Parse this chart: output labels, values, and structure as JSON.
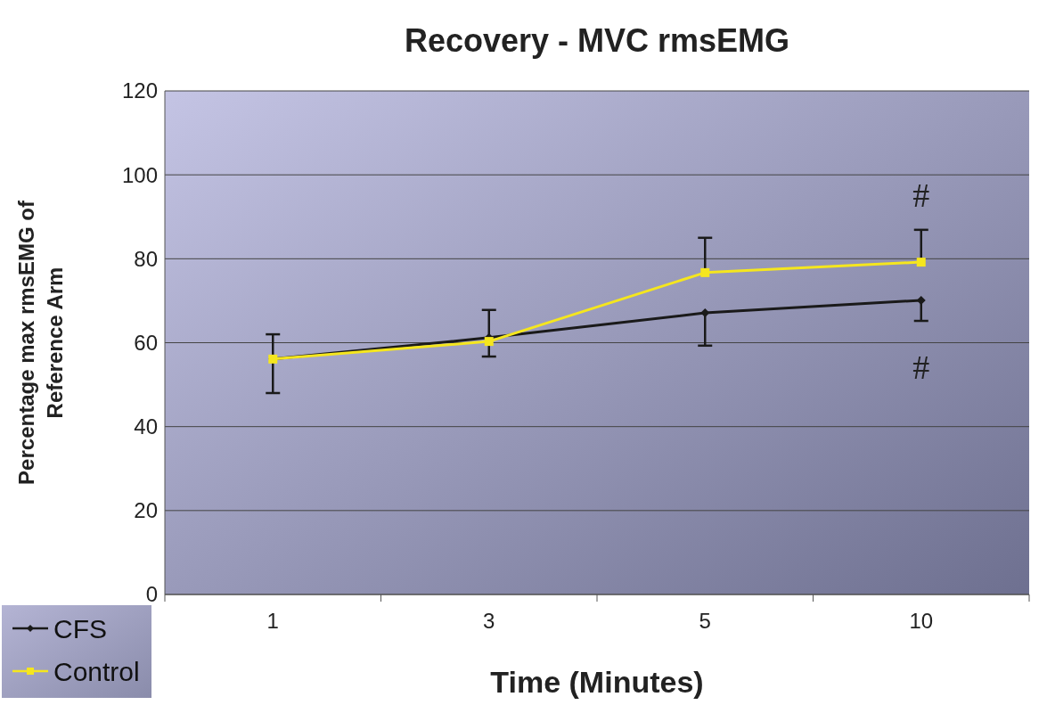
{
  "chart_data": {
    "type": "line",
    "title": "Recovery - MVC rmsEMG",
    "xlabel": "Time (Minutes)",
    "ylabel": "Percentage max rmsEMG  of Reference Arm",
    "categories": [
      "1",
      "3",
      "5",
      "10"
    ],
    "ylim": [
      0,
      120
    ],
    "yticks": [
      0,
      20,
      40,
      60,
      80,
      100,
      120
    ],
    "grid": "y",
    "legend": "bottom left",
    "series": [
      {
        "name": "CFS",
        "color": "#1a1a1a",
        "marker": "diamond",
        "values": [
          56.1,
          61.2,
          67.1,
          70.1
        ],
        "errors": [
          [
            48,
            56.1
          ],
          [
            56.7,
            61.2
          ],
          [
            59.3,
            67.1
          ],
          [
            65.2,
            70.1
          ]
        ]
      },
      {
        "name": "Control",
        "color": "#f5e61e",
        "marker": "square",
        "values": [
          56.1,
          60.3,
          76.7,
          79.2
        ],
        "errors": [
          [
            56.1,
            62
          ],
          [
            60.3,
            67.8
          ],
          [
            76.7,
            85
          ],
          [
            79.2,
            86.9
          ]
        ]
      }
    ],
    "annotations": [
      "#",
      "#"
    ]
  }
}
